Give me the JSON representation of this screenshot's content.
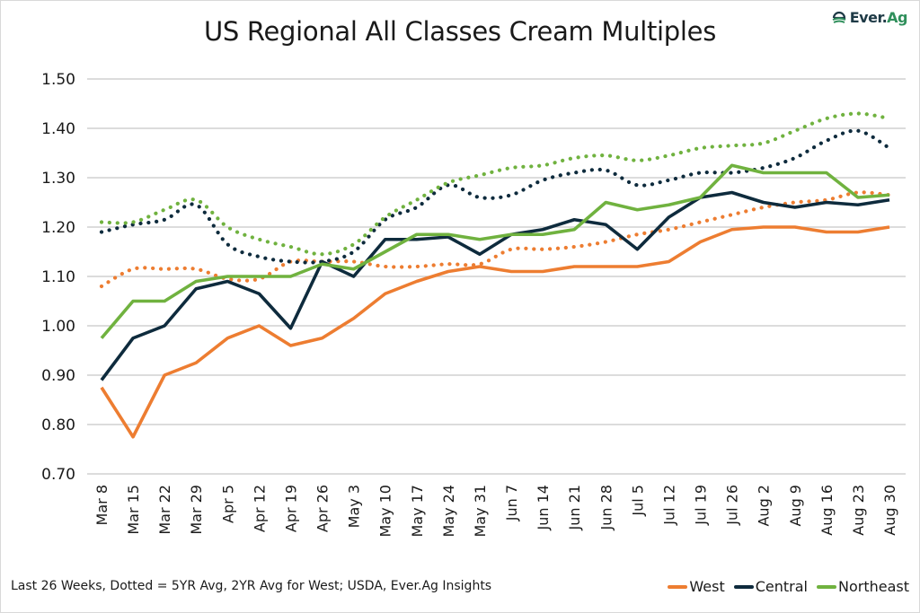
{
  "header": {
    "title": "US Regional All Classes Cream Multiples",
    "logo_text_main": "Ever.",
    "logo_text_accent": "Ag"
  },
  "footer": {
    "note": "Last 26 Weeks, Dotted = 5YR Avg, 2YR Avg for West; USDA, Ever.Ag Insights"
  },
  "legend": [
    {
      "label": "West",
      "color": "#ED7D31"
    },
    {
      "label": "Central",
      "color": "#0E2B3D"
    },
    {
      "label": "Northeast",
      "color": "#70B23F"
    }
  ],
  "chart_data": {
    "type": "line",
    "title": "US Regional All Classes Cream Multiples",
    "xlabel": "",
    "ylabel": "",
    "ylim": [
      0.7,
      1.5
    ],
    "yticks": [
      "0.70",
      "0.80",
      "0.90",
      "1.00",
      "1.10",
      "1.20",
      "1.30",
      "1.40",
      "1.50"
    ],
    "ytick_values": [
      0.7,
      0.8,
      0.9,
      1.0,
      1.1,
      1.2,
      1.3,
      1.4,
      1.5
    ],
    "grid": true,
    "legend_position": "bottom-right",
    "categories": [
      "Mar 8",
      "Mar 15",
      "Mar 22",
      "Mar 29",
      "Apr 5",
      "Apr 12",
      "Apr 19",
      "Apr 26",
      "May 3",
      "May 10",
      "May 17",
      "May 24",
      "May 31",
      "Jun 7",
      "Jun 14",
      "Jun 21",
      "Jun 28",
      "Jul 5",
      "Jul 12",
      "Jul 19",
      "Jul 26",
      "Aug 2",
      "Aug 9",
      "Aug 16",
      "Aug 23",
      "Aug 30"
    ],
    "series": [
      {
        "name": "West",
        "style": "solid",
        "color": "#ED7D31",
        "values": [
          0.875,
          0.775,
          0.9,
          0.925,
          0.975,
          1.0,
          0.96,
          0.975,
          1.015,
          1.065,
          1.09,
          1.11,
          1.12,
          1.11,
          1.11,
          1.12,
          1.12,
          1.12,
          1.13,
          1.17,
          1.195,
          1.2,
          1.2,
          1.19,
          1.19,
          1.2
        ]
      },
      {
        "name": "Central",
        "style": "solid",
        "color": "#0E2B3D",
        "values": [
          0.89,
          0.975,
          1.0,
          1.075,
          1.09,
          1.065,
          0.995,
          1.13,
          1.1,
          1.175,
          1.175,
          1.18,
          1.145,
          1.185,
          1.195,
          1.215,
          1.205,
          1.155,
          1.22,
          1.26,
          1.27,
          1.25,
          1.24,
          1.25,
          1.245,
          1.255
        ]
      },
      {
        "name": "Northeast",
        "style": "solid",
        "color": "#70B23F",
        "values": [
          0.975,
          1.05,
          1.05,
          1.09,
          1.1,
          1.1,
          1.1,
          1.125,
          1.115,
          1.15,
          1.185,
          1.185,
          1.175,
          1.185,
          1.185,
          1.195,
          1.25,
          1.235,
          1.245,
          1.26,
          1.325,
          1.31,
          1.31,
          1.31,
          1.26,
          1.265
        ]
      },
      {
        "name": "West 2YR Avg",
        "style": "dotted",
        "color": "#ED7D31",
        "values": [
          1.08,
          1.115,
          1.115,
          1.115,
          1.095,
          1.095,
          1.13,
          1.13,
          1.13,
          1.12,
          1.12,
          1.125,
          1.125,
          1.155,
          1.155,
          1.16,
          1.17,
          1.185,
          1.195,
          1.21,
          1.225,
          1.24,
          1.25,
          1.255,
          1.27,
          1.265
        ]
      },
      {
        "name": "Central 5YR Avg",
        "style": "dotted",
        "color": "#0E2B3D",
        "values": [
          1.19,
          1.205,
          1.215,
          1.245,
          1.165,
          1.14,
          1.13,
          1.13,
          1.15,
          1.215,
          1.24,
          1.285,
          1.26,
          1.265,
          1.295,
          1.31,
          1.315,
          1.285,
          1.295,
          1.31,
          1.31,
          1.32,
          1.34,
          1.375,
          1.395,
          1.36
        ]
      },
      {
        "name": "Northeast 5YR Avg",
        "style": "dotted",
        "color": "#70B23F",
        "values": [
          1.21,
          1.21,
          1.235,
          1.255,
          1.2,
          1.175,
          1.16,
          1.145,
          1.165,
          1.22,
          1.255,
          1.29,
          1.305,
          1.32,
          1.325,
          1.34,
          1.345,
          1.335,
          1.345,
          1.36,
          1.365,
          1.37,
          1.395,
          1.42,
          1.43,
          1.42
        ]
      }
    ]
  }
}
